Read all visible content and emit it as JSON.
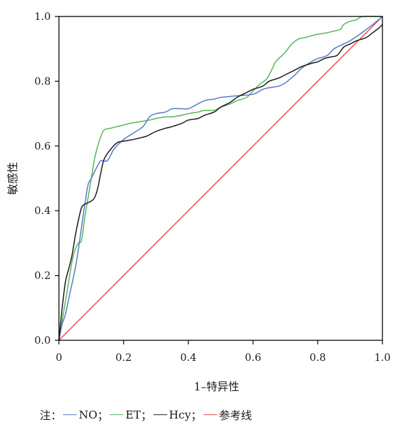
{
  "chart_data": {
    "type": "line",
    "title": "",
    "xlabel": "1–特异性",
    "ylabel": "敏感性",
    "xlim": [
      0,
      1
    ],
    "ylim": [
      0,
      1
    ],
    "xticks": [
      "0",
      "0.2",
      "0.4",
      "0.6",
      "0.8",
      "1.0"
    ],
    "yticks": [
      "0.0",
      "0.2",
      "0.4",
      "0.6",
      "0.8",
      "1.0"
    ],
    "grid": false,
    "legend_prefix": "注：",
    "series": [
      {
        "name": "NO",
        "color": "#5b7fc6",
        "points": [
          [
            0,
            0
          ],
          [
            0.01,
            0.05
          ],
          [
            0.02,
            0.08
          ],
          [
            0.035,
            0.15
          ],
          [
            0.05,
            0.22
          ],
          [
            0.06,
            0.28
          ],
          [
            0.07,
            0.35
          ],
          [
            0.08,
            0.42
          ],
          [
            0.09,
            0.48
          ],
          [
            0.1,
            0.5
          ],
          [
            0.12,
            0.54
          ],
          [
            0.13,
            0.555
          ],
          [
            0.15,
            0.555
          ],
          [
            0.17,
            0.59
          ],
          [
            0.2,
            0.62
          ],
          [
            0.23,
            0.64
          ],
          [
            0.26,
            0.66
          ],
          [
            0.28,
            0.69
          ],
          [
            0.3,
            0.7
          ],
          [
            0.33,
            0.705
          ],
          [
            0.35,
            0.715
          ],
          [
            0.38,
            0.715
          ],
          [
            0.4,
            0.715
          ],
          [
            0.42,
            0.725
          ],
          [
            0.45,
            0.74
          ],
          [
            0.48,
            0.745
          ],
          [
            0.5,
            0.75
          ],
          [
            0.55,
            0.755
          ],
          [
            0.6,
            0.76
          ],
          [
            0.63,
            0.775
          ],
          [
            0.65,
            0.78
          ],
          [
            0.68,
            0.785
          ],
          [
            0.7,
            0.795
          ],
          [
            0.73,
            0.82
          ],
          [
            0.75,
            0.84
          ],
          [
            0.78,
            0.86
          ],
          [
            0.8,
            0.87
          ],
          [
            0.83,
            0.88
          ],
          [
            0.85,
            0.9
          ],
          [
            0.88,
            0.915
          ],
          [
            0.9,
            0.925
          ],
          [
            0.93,
            0.945
          ],
          [
            0.95,
            0.96
          ],
          [
            0.97,
            0.975
          ],
          [
            1.0,
            1.0
          ]
        ]
      },
      {
        "name": "ET",
        "color": "#5cb860",
        "points": [
          [
            0,
            0
          ],
          [
            0.01,
            0.06
          ],
          [
            0.02,
            0.12
          ],
          [
            0.03,
            0.18
          ],
          [
            0.04,
            0.24
          ],
          [
            0.05,
            0.28
          ],
          [
            0.06,
            0.3
          ],
          [
            0.07,
            0.31
          ],
          [
            0.08,
            0.38
          ],
          [
            0.09,
            0.44
          ],
          [
            0.1,
            0.5
          ],
          [
            0.11,
            0.56
          ],
          [
            0.12,
            0.6
          ],
          [
            0.13,
            0.63
          ],
          [
            0.14,
            0.65
          ],
          [
            0.16,
            0.655
          ],
          [
            0.18,
            0.66
          ],
          [
            0.2,
            0.665
          ],
          [
            0.22,
            0.67
          ],
          [
            0.25,
            0.675
          ],
          [
            0.28,
            0.68
          ],
          [
            0.3,
            0.685
          ],
          [
            0.33,
            0.69
          ],
          [
            0.35,
            0.69
          ],
          [
            0.38,
            0.695
          ],
          [
            0.4,
            0.7
          ],
          [
            0.43,
            0.705
          ],
          [
            0.45,
            0.71
          ],
          [
            0.48,
            0.71
          ],
          [
            0.5,
            0.72
          ],
          [
            0.53,
            0.73
          ],
          [
            0.55,
            0.74
          ],
          [
            0.58,
            0.75
          ],
          [
            0.6,
            0.77
          ],
          [
            0.62,
            0.79
          ],
          [
            0.64,
            0.805
          ],
          [
            0.65,
            0.82
          ],
          [
            0.66,
            0.84
          ],
          [
            0.67,
            0.86
          ],
          [
            0.69,
            0.88
          ],
          [
            0.7,
            0.89
          ],
          [
            0.72,
            0.915
          ],
          [
            0.74,
            0.93
          ],
          [
            0.76,
            0.935
          ],
          [
            0.78,
            0.94
          ],
          [
            0.8,
            0.945
          ],
          [
            0.83,
            0.95
          ],
          [
            0.85,
            0.955
          ],
          [
            0.87,
            0.96
          ],
          [
            0.88,
            0.975
          ],
          [
            0.9,
            0.985
          ],
          [
            0.92,
            0.99
          ],
          [
            0.94,
            1.0
          ],
          [
            1.0,
            1.0
          ]
        ]
      },
      {
        "name": "Hcy",
        "color": "#222222",
        "points": [
          [
            0,
            0
          ],
          [
            0.01,
            0.1
          ],
          [
            0.02,
            0.18
          ],
          [
            0.03,
            0.22
          ],
          [
            0.04,
            0.26
          ],
          [
            0.05,
            0.32
          ],
          [
            0.06,
            0.37
          ],
          [
            0.07,
            0.41
          ],
          [
            0.08,
            0.42
          ],
          [
            0.09,
            0.425
          ],
          [
            0.1,
            0.43
          ],
          [
            0.11,
            0.44
          ],
          [
            0.12,
            0.47
          ],
          [
            0.13,
            0.52
          ],
          [
            0.14,
            0.56
          ],
          [
            0.16,
            0.59
          ],
          [
            0.18,
            0.61
          ],
          [
            0.2,
            0.615
          ],
          [
            0.23,
            0.62
          ],
          [
            0.25,
            0.625
          ],
          [
            0.27,
            0.63
          ],
          [
            0.3,
            0.645
          ],
          [
            0.33,
            0.655
          ],
          [
            0.35,
            0.66
          ],
          [
            0.38,
            0.67
          ],
          [
            0.4,
            0.68
          ],
          [
            0.43,
            0.685
          ],
          [
            0.45,
            0.695
          ],
          [
            0.48,
            0.705
          ],
          [
            0.5,
            0.72
          ],
          [
            0.53,
            0.735
          ],
          [
            0.55,
            0.75
          ],
          [
            0.58,
            0.765
          ],
          [
            0.6,
            0.775
          ],
          [
            0.63,
            0.785
          ],
          [
            0.65,
            0.8
          ],
          [
            0.68,
            0.81
          ],
          [
            0.7,
            0.82
          ],
          [
            0.73,
            0.835
          ],
          [
            0.75,
            0.845
          ],
          [
            0.78,
            0.855
          ],
          [
            0.8,
            0.86
          ],
          [
            0.82,
            0.87
          ],
          [
            0.84,
            0.875
          ],
          [
            0.86,
            0.88
          ],
          [
            0.88,
            0.905
          ],
          [
            0.9,
            0.915
          ],
          [
            0.92,
            0.925
          ],
          [
            0.95,
            0.935
          ],
          [
            0.97,
            0.95
          ],
          [
            0.99,
            0.965
          ],
          [
            1.0,
            0.975
          ]
        ]
      },
      {
        "name": "参考线",
        "color": "#e84a4a",
        "points": [
          [
            0,
            0
          ],
          [
            1,
            1
          ]
        ]
      }
    ]
  }
}
